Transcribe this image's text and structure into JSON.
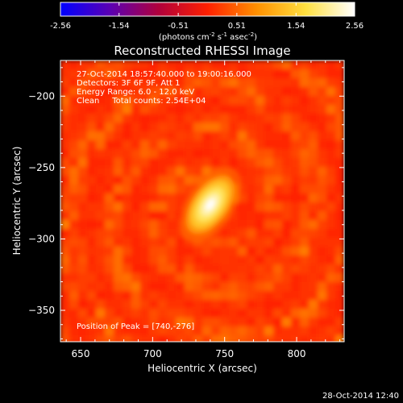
{
  "chart_data": {
    "type": "heatmap",
    "title": "Reconstructed RHESSI Image",
    "xlabel": "Heliocentric X (arcsec)",
    "ylabel": "Heliocentric Y (arcsec)",
    "xlim": [
      636,
      833
    ],
    "ylim": [
      -372,
      -175
    ],
    "xticks": [
      650,
      700,
      750,
      800
    ],
    "yticks": [
      -200,
      -250,
      -300,
      -350
    ],
    "grid": false,
    "colorbar": {
      "colormap": "blue-purple-red-orange-yellow-white",
      "range": [
        -2.56,
        2.56
      ],
      "ticks": [
        "-2.56",
        "-1.54",
        "-0.51",
        "0.51",
        "1.54",
        "2.56"
      ],
      "label": "(photons cm-2 s-1 asec-2)",
      "label_parts": {
        "base": "(photons cm",
        "exp1": "-2",
        "mid1": " s",
        "exp2": "-1",
        "mid2": " asec",
        "exp3": "-2",
        "end": ")"
      },
      "colors": [
        "#0000ff",
        "#5a00b4",
        "#b0003c",
        "#ff2000",
        "#ff9000",
        "#ffe040",
        "#ffffff"
      ]
    },
    "annotations": [
      "27-Oct-2014 18:57:40.000 to 19:00:16.000",
      "Detectors: 3F 6F 9F, Att 1",
      "Energy Range: 6.0 - 12.0 keV",
      "Clean     Total counts: 2.54E+04"
    ],
    "peak_label": "Position of Peak = [740,-276]",
    "peak": {
      "x": 740,
      "y": -276,
      "value": 2.56
    },
    "source_fwhm_arcsec": {
      "major": 22,
      "minor": 12,
      "angle_deg": 55
    }
  },
  "footer_timestamp": "28-Oct-2014 12:40"
}
